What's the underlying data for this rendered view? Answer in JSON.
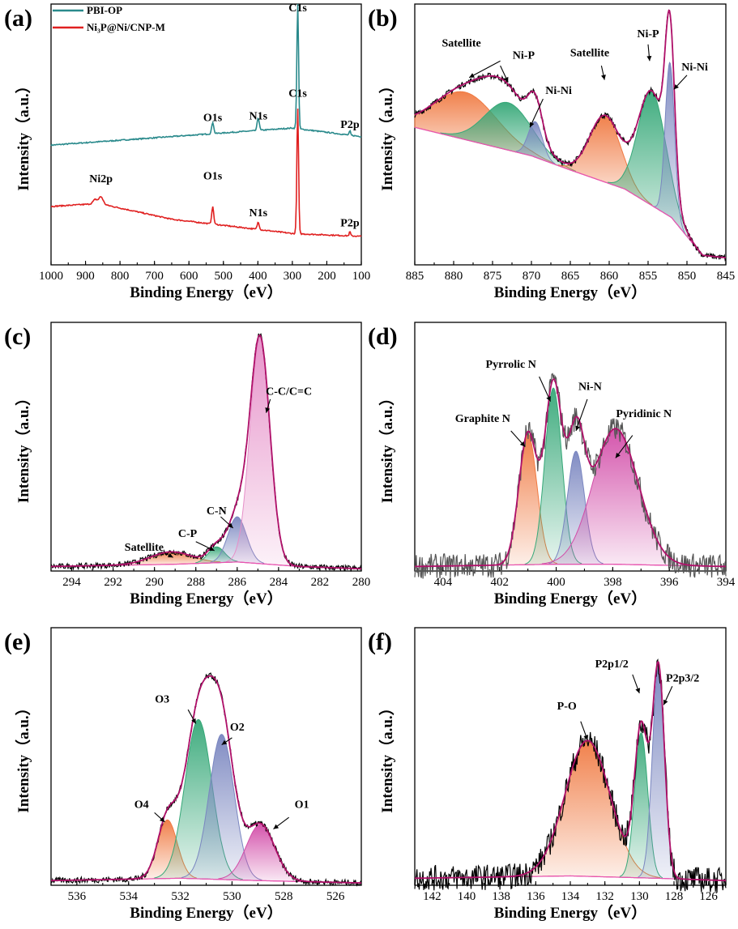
{
  "figure": {
    "xlabel": "Binding Energy（eV）",
    "ylabel": "Intensity（a.u.）"
  },
  "chart_data": [
    {
      "panel": "(a)",
      "type": "line",
      "xlabel": "Binding Energy（eV）",
      "ylabel": "Intensity（a.u.）",
      "xlim": [
        1000,
        100
      ],
      "xticks": [
        1000,
        900,
        800,
        700,
        600,
        500,
        400,
        300,
        200,
        100
      ],
      "legend": {
        "placement": "top-left",
        "entries": [
          {
            "text": "PBI-OP",
            "color": "#2a8a8c"
          },
          {
            "text": "Ni₃P@Ni/CNP-M",
            "color": "#e02020"
          }
        ]
      },
      "series": [
        {
          "name": "PBI-OP",
          "color": "#2a8a8c",
          "baseline": [
            [
              1000,
              0.76
            ],
            [
              300,
              0.88
            ],
            [
              100,
              0.82
            ]
          ],
          "peaks": [
            {
              "x": 531,
              "h": 0.08,
              "w": 3
            },
            {
              "x": 399,
              "h": 0.09,
              "w": 3
            },
            {
              "x": 284.5,
              "h": 0.88,
              "w": 2.5
            },
            {
              "x": 133,
              "h": 0.03,
              "w": 2
            }
          ]
        },
        {
          "name": "Ni₃P@Ni/CNP-M",
          "color": "#e02020",
          "baseline": [
            [
              1000,
              0.33
            ],
            [
              860,
              0.35
            ],
            [
              650,
              0.24
            ],
            [
              300,
              0.14
            ],
            [
              100,
              0.12
            ]
          ],
          "peaks": [
            {
              "x": 855,
              "h": 0.05,
              "w": 6
            },
            {
              "x": 872,
              "h": 0.03,
              "w": 6
            },
            {
              "x": 531,
              "h": 0.12,
              "w": 3
            },
            {
              "x": 399,
              "h": 0.05,
              "w": 3
            },
            {
              "x": 284.5,
              "h": 0.88,
              "w": 2.5
            },
            {
              "x": 133,
              "h": 0.03,
              "w": 2
            }
          ]
        }
      ],
      "annotations": [
        {
          "text": "PBI-OP",
          "x": 531,
          "y": 0.93,
          "label": "O1s"
        },
        {
          "text": "N1s",
          "x": 399,
          "y": 0.94
        },
        {
          "text": "C1s",
          "x": 284.5,
          "y": 1.7
        },
        {
          "text": "P2p",
          "x": 133,
          "y": 0.88
        },
        {
          "text": "Ni2p",
          "x": 855,
          "y": 0.5
        },
        {
          "text": "O1s",
          "x": 531,
          "y": 0.52
        },
        {
          "text": "N1s",
          "x": 399,
          "y": 0.26
        },
        {
          "text": "C1s",
          "x": 284.5,
          "y": 1.1
        },
        {
          "text": "P2p",
          "x": 133,
          "y": 0.19
        }
      ],
      "ylim": [
        -0.08,
        1.75
      ]
    },
    {
      "panel": "(b)",
      "type": "line",
      "xlabel": "Binding Energy（eV）",
      "ylabel": "Intensity（a.u.）",
      "xlim": [
        885,
        845
      ],
      "xticks": [
        885,
        880,
        875,
        870,
        865,
        860,
        855,
        850,
        845
      ],
      "ylim": [
        0,
        1.1
      ],
      "background": {
        "points": [
          [
            885,
            0.58
          ],
          [
            870,
            0.46
          ],
          [
            865,
            0.4
          ],
          [
            858,
            0.32
          ],
          [
            852,
            0.2
          ],
          [
            848,
            0.04
          ],
          [
            845,
            0.03
          ]
        ],
        "color": "#e855b0"
      },
      "components": [
        {
          "label": "Satellite",
          "center": 878.5,
          "height": 0.2,
          "width": 4.0,
          "color": "#f07a42"
        },
        {
          "label": "Ni-P",
          "center": 873.0,
          "height": 0.2,
          "width": 3.0,
          "color": "#36a878"
        },
        {
          "label": "Ni-Ni",
          "center": 869.5,
          "height": 0.15,
          "width": 0.9,
          "color": "#7a86c0"
        },
        {
          "label": "Satellite",
          "center": 860.5,
          "height": 0.28,
          "width": 2.0,
          "color": "#f07a42"
        },
        {
          "label": "Ni-P",
          "center": 854.5,
          "height": 0.48,
          "width": 1.8,
          "color": "#36a878"
        },
        {
          "label": "Ni-Ni",
          "center": 852.2,
          "height": 0.65,
          "width": 0.6,
          "color": "#7a86c0"
        }
      ],
      "raw_color": "#000000",
      "fit_color": "#b0106a",
      "labels": [
        "Satellite",
        "Ni-P",
        "Ni-Ni",
        "Satellite",
        "Ni-P",
        "Ni-Ni"
      ]
    },
    {
      "panel": "(c)",
      "type": "line",
      "xlabel": "Binding Energy（eV）",
      "ylabel": "Intensity（a.u.）",
      "xlim": [
        295,
        280
      ],
      "xticks": [
        294,
        292,
        290,
        288,
        286,
        284,
        282,
        280
      ],
      "ylim": [
        0,
        1.1
      ],
      "background": {
        "points": [
          [
            295,
            0.02
          ],
          [
            289,
            0.03
          ],
          [
            286,
            0.04
          ],
          [
            283,
            0.02
          ],
          [
            280,
            0.01
          ]
        ],
        "color": "#e855b0"
      },
      "components": [
        {
          "label": "Satellite",
          "center": 289.2,
          "height": 0.055,
          "width": 1.0,
          "color": "#f07a42"
        },
        {
          "label": "C-P",
          "center": 287.0,
          "height": 0.07,
          "width": 0.4,
          "color": "#36a878"
        },
        {
          "label": "C-N",
          "center": 286.0,
          "height": 0.2,
          "width": 0.45,
          "color": "#7a86c0"
        },
        {
          "label": "C-C/C=C",
          "center": 284.9,
          "height": 1.0,
          "width": 0.48,
          "color": "#e68fc8"
        }
      ],
      "raw_color": "#000000",
      "fit_color": "#b0106a",
      "labels": [
        "Satellite",
        "C-P",
        "C-N",
        "C-C/C=C"
      ]
    },
    {
      "panel": "(d)",
      "type": "line",
      "xlabel": "Binding Energy（eV）",
      "ylabel": "Intensity（a.u.）",
      "xlim": [
        405,
        394
      ],
      "xticks": [
        404,
        402,
        400,
        398,
        396,
        394
      ],
      "ylim": [
        0,
        1.1
      ],
      "background": {
        "points": [
          [
            405,
            0.02
          ],
          [
            400,
            0.03
          ],
          [
            398,
            0.03
          ],
          [
            394,
            0.02
          ]
        ],
        "color": "#e855b0"
      },
      "components": [
        {
          "label": "Graphite N",
          "center": 401.0,
          "height": 0.58,
          "width": 0.32,
          "color": "#f07a42"
        },
        {
          "label": "Pyrrolic N",
          "center": 400.1,
          "height": 0.78,
          "width": 0.3,
          "color": "#36a878"
        },
        {
          "label": "Ni-N",
          "center": 399.3,
          "height": 0.5,
          "width": 0.3,
          "color": "#7a86c0"
        },
        {
          "label": "Pyridinic N",
          "center": 397.9,
          "height": 0.6,
          "width": 0.8,
          "color": "#d24ca8"
        }
      ],
      "raw_color": "#555555",
      "fit_color": "#b0106a",
      "labels": [
        "Graphite N",
        "Pyrrolic N",
        "Ni-N",
        "Pyridinic N"
      ]
    },
    {
      "panel": "(e)",
      "type": "line",
      "xlabel": "Binding Energy（eV）",
      "ylabel": "Intensity（a.u.）",
      "xlim": [
        537,
        525
      ],
      "xticks": [
        536,
        534,
        532,
        530,
        528,
        526
      ],
      "ylim": [
        0,
        1.1
      ],
      "background": {
        "points": [
          [
            537,
            0.02
          ],
          [
            532,
            0.03
          ],
          [
            529,
            0.02
          ],
          [
            525,
            0.01
          ]
        ],
        "color": "#e855b0"
      },
      "components": [
        {
          "label": "O4",
          "center": 532.5,
          "height": 0.25,
          "width": 0.38,
          "color": "#f07a42"
        },
        {
          "label": "O3",
          "center": 531.3,
          "height": 0.68,
          "width": 0.52,
          "color": "#36a878"
        },
        {
          "label": "O2",
          "center": 530.4,
          "height": 0.62,
          "width": 0.48,
          "color": "#7a86c0"
        },
        {
          "label": "O1",
          "center": 528.9,
          "height": 0.24,
          "width": 0.55,
          "color": "#d24ca8"
        }
      ],
      "raw_color": "#000000",
      "fit_color": "#b0106a",
      "labels": [
        "O4",
        "O3",
        "O2",
        "O1"
      ]
    },
    {
      "panel": "(f)",
      "type": "line",
      "xlabel": "Binding Energy（eV）",
      "ylabel": "Intensity（a.u.）",
      "xlim": [
        143,
        125
      ],
      "xticks": [
        142,
        140,
        138,
        136,
        134,
        132,
        130,
        128,
        126
      ],
      "ylim": [
        0,
        1.1
      ],
      "background": {
        "points": [
          [
            143,
            0.03
          ],
          [
            134,
            0.04
          ],
          [
            129,
            0.03
          ],
          [
            125,
            0.02
          ]
        ],
        "color": "#e855b0"
      },
      "components": [
        {
          "label": "P-O",
          "center": 133.0,
          "height": 0.58,
          "width": 1.3,
          "color": "#f07a42"
        },
        {
          "label": "P2p1/2",
          "center": 129.9,
          "height": 0.62,
          "width": 0.38,
          "color": "#36a878"
        },
        {
          "label": "P2p3/2",
          "center": 128.9,
          "height": 0.9,
          "width": 0.35,
          "color": "#7a86c0"
        }
      ],
      "raw_color": "#000000",
      "fit_color": "#b0106a",
      "labels": [
        "P-O",
        "P2p1/2",
        "P2p3/2"
      ]
    }
  ]
}
